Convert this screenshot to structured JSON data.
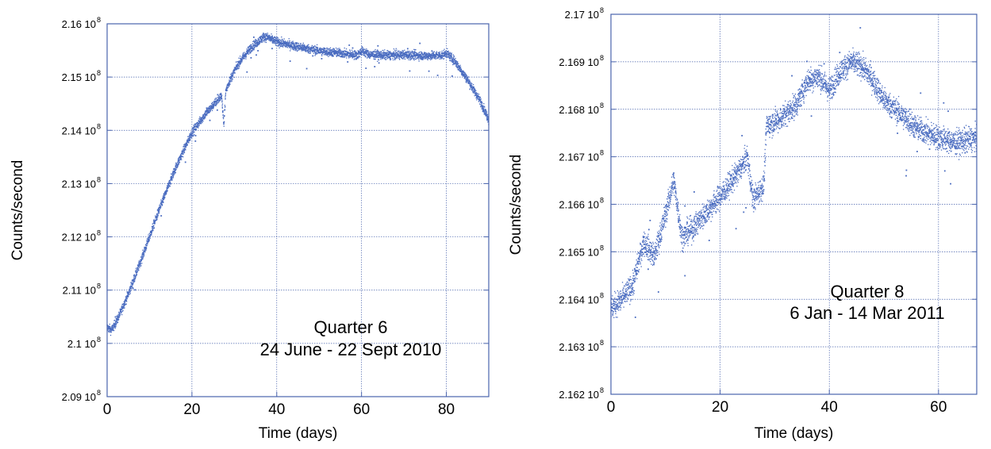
{
  "chart_data": [
    {
      "type": "scatter",
      "xlabel": "Time (days)",
      "ylabel": "Counts/second",
      "xlim": [
        0,
        90
      ],
      "ylim": [
        209000000,
        216000000
      ],
      "x_ticks": [
        "0",
        "20",
        "40",
        "60",
        "80"
      ],
      "y_ticks": [
        {
          "mantissa": "2.09 10",
          "exp": "8"
        },
        {
          "mantissa": "2.1 10",
          "exp": "8"
        },
        {
          "mantissa": "2.11 10",
          "exp": "8"
        },
        {
          "mantissa": "2.12 10",
          "exp": "8"
        },
        {
          "mantissa": "2.13 10",
          "exp": "8"
        },
        {
          "mantissa": "2.14 10",
          "exp": "8"
        },
        {
          "mantissa": "2.15 10",
          "exp": "8"
        },
        {
          "mantissa": "2.16 10",
          "exp": "8"
        }
      ],
      "annotation": [
        "Quarter 6",
        "24 June - 22 Sept 2010"
      ],
      "grid": true,
      "color": "#4a6cc0",
      "series": [
        {
          "x": [
            0,
            1,
            2,
            3,
            5,
            8,
            12,
            16,
            20,
            23,
            27,
            27.5,
            28,
            29,
            31,
            34,
            37,
            38,
            40,
            45,
            50,
            55,
            59,
            60,
            62,
            66,
            70,
            75,
            79,
            80,
            82,
            85,
            88,
            90
          ],
          "y": [
            210300000,
            210250000,
            210380000,
            210550000,
            210930000,
            211560000,
            212450000,
            213270000,
            213960000,
            214290000,
            214650000,
            214100000,
            214750000,
            214950000,
            215260000,
            215560000,
            215760000,
            215740000,
            215660000,
            215570000,
            215490000,
            215450000,
            215410000,
            215490000,
            215420000,
            215410000,
            215420000,
            215400000,
            215410000,
            215450000,
            215300000,
            214950000,
            214550000,
            214200000
          ],
          "band": 80000
        }
      ]
    },
    {
      "type": "scatter",
      "xlabel": "Time (days)",
      "ylabel": "Counts/second",
      "xlim": [
        0,
        67
      ],
      "ylim": [
        216200000,
        217000000
      ],
      "x_ticks": [
        "0",
        "20",
        "40",
        "60"
      ],
      "y_ticks": [
        {
          "mantissa": "2.162 10",
          "exp": "8"
        },
        {
          "mantissa": "2.163 10",
          "exp": "8"
        },
        {
          "mantissa": "2.164 10",
          "exp": "8"
        },
        {
          "mantissa": "2.165 10",
          "exp": "8"
        },
        {
          "mantissa": "2.166 10",
          "exp": "8"
        },
        {
          "mantissa": "2.167 10",
          "exp": "8"
        },
        {
          "mantissa": "2.168 10",
          "exp": "8"
        },
        {
          "mantissa": "2.169 10",
          "exp": "8"
        },
        {
          "mantissa": "2.17 10",
          "exp": "8"
        }
      ],
      "annotation": [
        "Quarter 8",
        "6 Jan - 14 Mar 2011"
      ],
      "grid": true,
      "color": "#4a6cc0",
      "series": [
        {
          "x": [
            0,
            2,
            4,
            6,
            8,
            10,
            11.5,
            13,
            15,
            18,
            21,
            24,
            25,
            26,
            28,
            28.5,
            31,
            34,
            36,
            38,
            40,
            42,
            44,
            46,
            48,
            50,
            53,
            56,
            60,
            63,
            67
          ],
          "y": [
            216380000,
            216400000,
            216430000,
            216520000,
            216490000,
            216580000,
            216650000,
            216530000,
            216550000,
            216590000,
            216630000,
            216680000,
            216700000,
            216610000,
            216640000,
            216765000,
            216780000,
            216810000,
            216860000,
            216870000,
            216840000,
            216880000,
            216900000,
            216890000,
            216860000,
            216820000,
            216790000,
            216760000,
            216740000,
            216730000,
            216740000
          ],
          "band": 25000
        }
      ]
    }
  ]
}
